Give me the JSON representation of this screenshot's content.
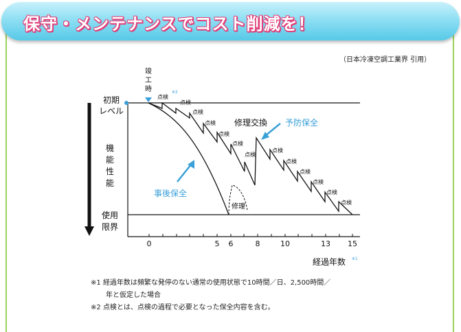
{
  "banner": {
    "title": "保守・メンテナンスでコスト削減を！"
  },
  "source": "（日本冷凍空調工業界 引用）",
  "diagram": {
    "y_top_label": [
      "初期",
      "レベル"
    ],
    "y_middle_label": [
      "機",
      "能",
      "性",
      "能"
    ],
    "y_bottom_label": [
      "使用",
      "限界"
    ],
    "completion_label": [
      "竣",
      "工",
      "時"
    ],
    "inspection_label": "点検",
    "note2_mark": "※2",
    "note1_mark": "※1",
    "repair_replace_label": "修理交換",
    "preventive_label": "予防保全",
    "corrective_label": "事後保全",
    "repair_label": "修理",
    "x_axis_label": "経過年数",
    "x_ticks": [
      "0",
      "5",
      "6",
      "8",
      "10",
      "13",
      "15"
    ]
  },
  "notes": [
    {
      "mark": "※1",
      "text": "経過年数は頻繁な発停のない通常の使用状態で10時間／日、2,500時間／",
      "cont": "年と仮定した場合"
    },
    {
      "mark": "※2",
      "text": "点検とは、点検の過程で必要となった保全内容を含む。"
    }
  ],
  "colors": {
    "banner": "#56c9e7",
    "banner_text_outline": "#e0407a",
    "frame": "#9bd25a",
    "accent": "#3aa0d8",
    "curve": "#111111"
  }
}
